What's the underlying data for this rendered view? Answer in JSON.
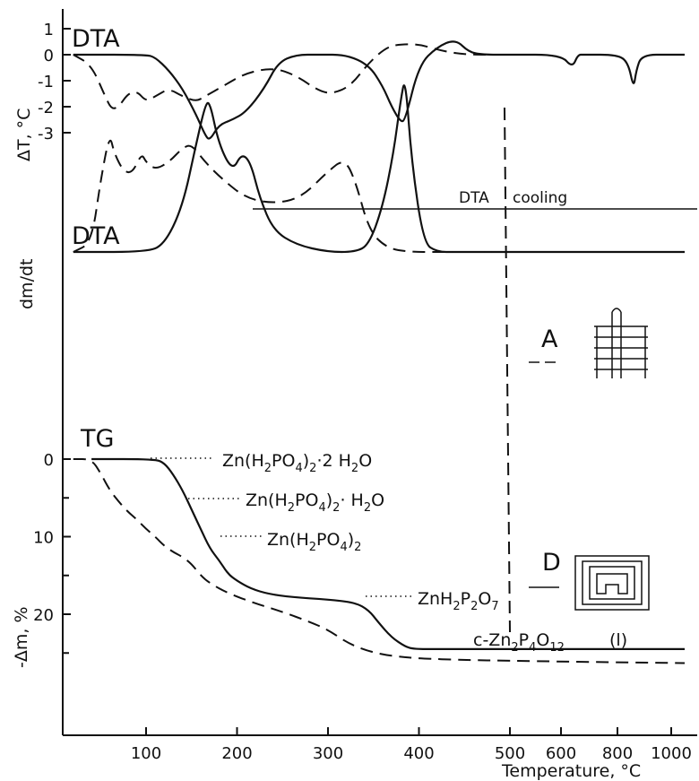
{
  "chart_data": {
    "type": "line",
    "xlabel": "Temperature, °C",
    "x_ticks": [
      "100",
      "200",
      "300",
      "400",
      "500",
      "600",
      "800",
      "1000"
    ],
    "x_scale": "piecewise: linear 20–500 °C, compressed 500–1000 °C",
    "panels": [
      {
        "title": "DTA",
        "ylabel": "ΔT, °C",
        "y_ticks": [
          "1",
          "0",
          "-1",
          "-2",
          "-3"
        ],
        "ylim": [
          -3.5,
          1.1
        ],
        "series": [
          {
            "style": "solid",
            "x": [
              20,
              100,
              110,
              125,
              140,
              155,
              165,
              170,
              180,
              195,
              210,
              230,
              245,
              265,
              290,
              320,
              345,
              360,
              370,
              380,
              385,
              400,
              420,
              440,
              455,
              470,
              500,
              600,
              640,
              660,
              680,
              800,
              840,
              860,
              870,
              890,
              1000,
              1050
            ],
            "y": [
              0,
              0,
              -0.1,
              -0.6,
              -1.3,
              -2.3,
              -3.1,
              -3.3,
              -2.7,
              -2.5,
              -2.2,
              -1.3,
              -0.3,
              0,
              0,
              0,
              -0.4,
              -1.2,
              -2,
              -2.6,
              -2.5,
              -0.4,
              0.3,
              0.6,
              0.1,
              0,
              0,
              0,
              -0.5,
              0,
              0,
              0,
              -0.3,
              -1.3,
              -0.6,
              0,
              0,
              0
            ]
          },
          {
            "style": "dashed",
            "x": [
              20,
              40,
              55,
              62,
              70,
              80,
              90,
              100,
              110,
              125,
              140,
              155,
              165,
              185,
              210,
              240,
              265,
              290,
              305,
              325,
              345,
              365,
              380,
              400,
              420,
              440,
              460,
              500
            ],
            "y": [
              0,
              -0.4,
              -1.6,
              -2.1,
              -2,
              -1.5,
              -1.4,
              -1.8,
              -1.6,
              -1.3,
              -1.6,
              -1.8,
              -1.6,
              -1.2,
              -0.7,
              -0.5,
              -0.8,
              -1.4,
              -1.5,
              -1.2,
              -0.3,
              0.3,
              0.4,
              0.4,
              0.2,
              0.05,
              0,
              0
            ]
          }
        ],
        "annotation": [
          "DTA",
          "cooling"
        ]
      },
      {
        "title": "DTA",
        "ylabel": "dm/dt",
        "series": [
          {
            "style": "solid",
            "x": [
              20,
              100,
              120,
              140,
              155,
              165,
              170,
              180,
              195,
              205,
              215,
              225,
              240,
              265,
              300,
              330,
              345,
              360,
              372,
              380,
              385,
              392,
              405,
              420,
              440,
              1050
            ],
            "y": [
              0,
              0,
              -0.04,
              -0.25,
              -0.6,
              -0.82,
              -0.84,
              -0.6,
              -0.45,
              -0.55,
              -0.5,
              -0.3,
              -0.12,
              -0.04,
              0,
              0,
              -0.04,
              -0.25,
              -0.55,
              -0.85,
              -0.98,
              -0.5,
              -0.05,
              0,
              0,
              0
            ]
          },
          {
            "style": "dashed",
            "x": [
              20,
              40,
              50,
              60,
              65,
              75,
              85,
              95,
              100,
              110,
              125,
              140,
              150,
              165,
              185,
              210,
              240,
              270,
              300,
              318,
              330,
              345,
              365,
              390,
              420,
              500
            ],
            "y": [
              0,
              -0.05,
              -0.4,
              -0.66,
              -0.55,
              -0.45,
              -0.44,
              -0.55,
              -0.5,
              -0.46,
              -0.5,
              -0.58,
              -0.6,
              -0.5,
              -0.4,
              -0.3,
              -0.27,
              -0.3,
              -0.45,
              -0.52,
              -0.4,
              -0.12,
              -0.02,
              0,
              0,
              0
            ]
          }
        ],
        "legend": [
          {
            "label": "A",
            "style": "dashed"
          },
          {
            "label": "D",
            "style": "solid"
          }
        ]
      },
      {
        "title": "TG",
        "ylabel": "-Δm, %",
        "y_ticks": [
          "0",
          "10",
          "20"
        ],
        "ylim": [
          -1,
          25.5
        ],
        "series": [
          {
            "style": "solid",
            "x": [
              40,
              110,
              120,
              130,
              140,
              150,
              160,
              170,
              180,
              190,
              200,
              215,
              235,
              260,
              300,
              330,
              345,
              355,
              370,
              385,
              395,
              420,
              500,
              1050
            ],
            "y": [
              0,
              0,
              0.5,
              2,
              4,
              6.5,
              9,
              11.5,
              13,
              14.8,
              15.7,
              16.7,
              17.4,
              17.8,
              18.1,
              18.5,
              19.5,
              21,
              23,
              24.2,
              24.5,
              24.5,
              24.5,
              24.5
            ]
          },
          {
            "style": "dashed",
            "x": [
              20,
              40,
              50,
              60,
              70,
              80,
              90,
              100,
              110,
              120,
              130,
              140,
              150,
              160,
              170,
              190,
              220,
              250,
              280,
              300,
              320,
              340,
              360,
              380,
              400,
              450,
              500,
              600,
              800,
              1050
            ],
            "y": [
              0,
              0,
              1.8,
              4,
              5.5,
              6.8,
              7.8,
              9,
              10,
              11.2,
              12,
              12.6,
              13.5,
              15,
              16,
              17.3,
              18.6,
              19.7,
              21,
              22,
              23.6,
              24.6,
              25.2,
              25.5,
              25.7,
              25.9,
              26,
              26.1,
              26.2,
              26.3
            ]
          }
        ],
        "annotations": [
          {
            "parts": [
              "Zn(H",
              "2",
              "PO",
              "4",
              ")",
              "2",
              "·2 H",
              "2",
              "O"
            ]
          },
          {
            "parts": [
              "Zn(H",
              "2",
              "PO",
              "4",
              ")",
              "2",
              "· H",
              "2",
              "O"
            ]
          },
          {
            "parts": [
              "Zn(H",
              "2",
              "PO",
              "4",
              ")",
              "2"
            ]
          },
          {
            "parts": [
              "ZnH",
              "2",
              "P",
              "2",
              "O",
              "7"
            ]
          },
          {
            "parts": [
              "c-Zn",
              "2",
              "P",
              "4",
              "O",
              "12"
            ]
          }
        ],
        "corner_label": "(l)"
      }
    ]
  }
}
